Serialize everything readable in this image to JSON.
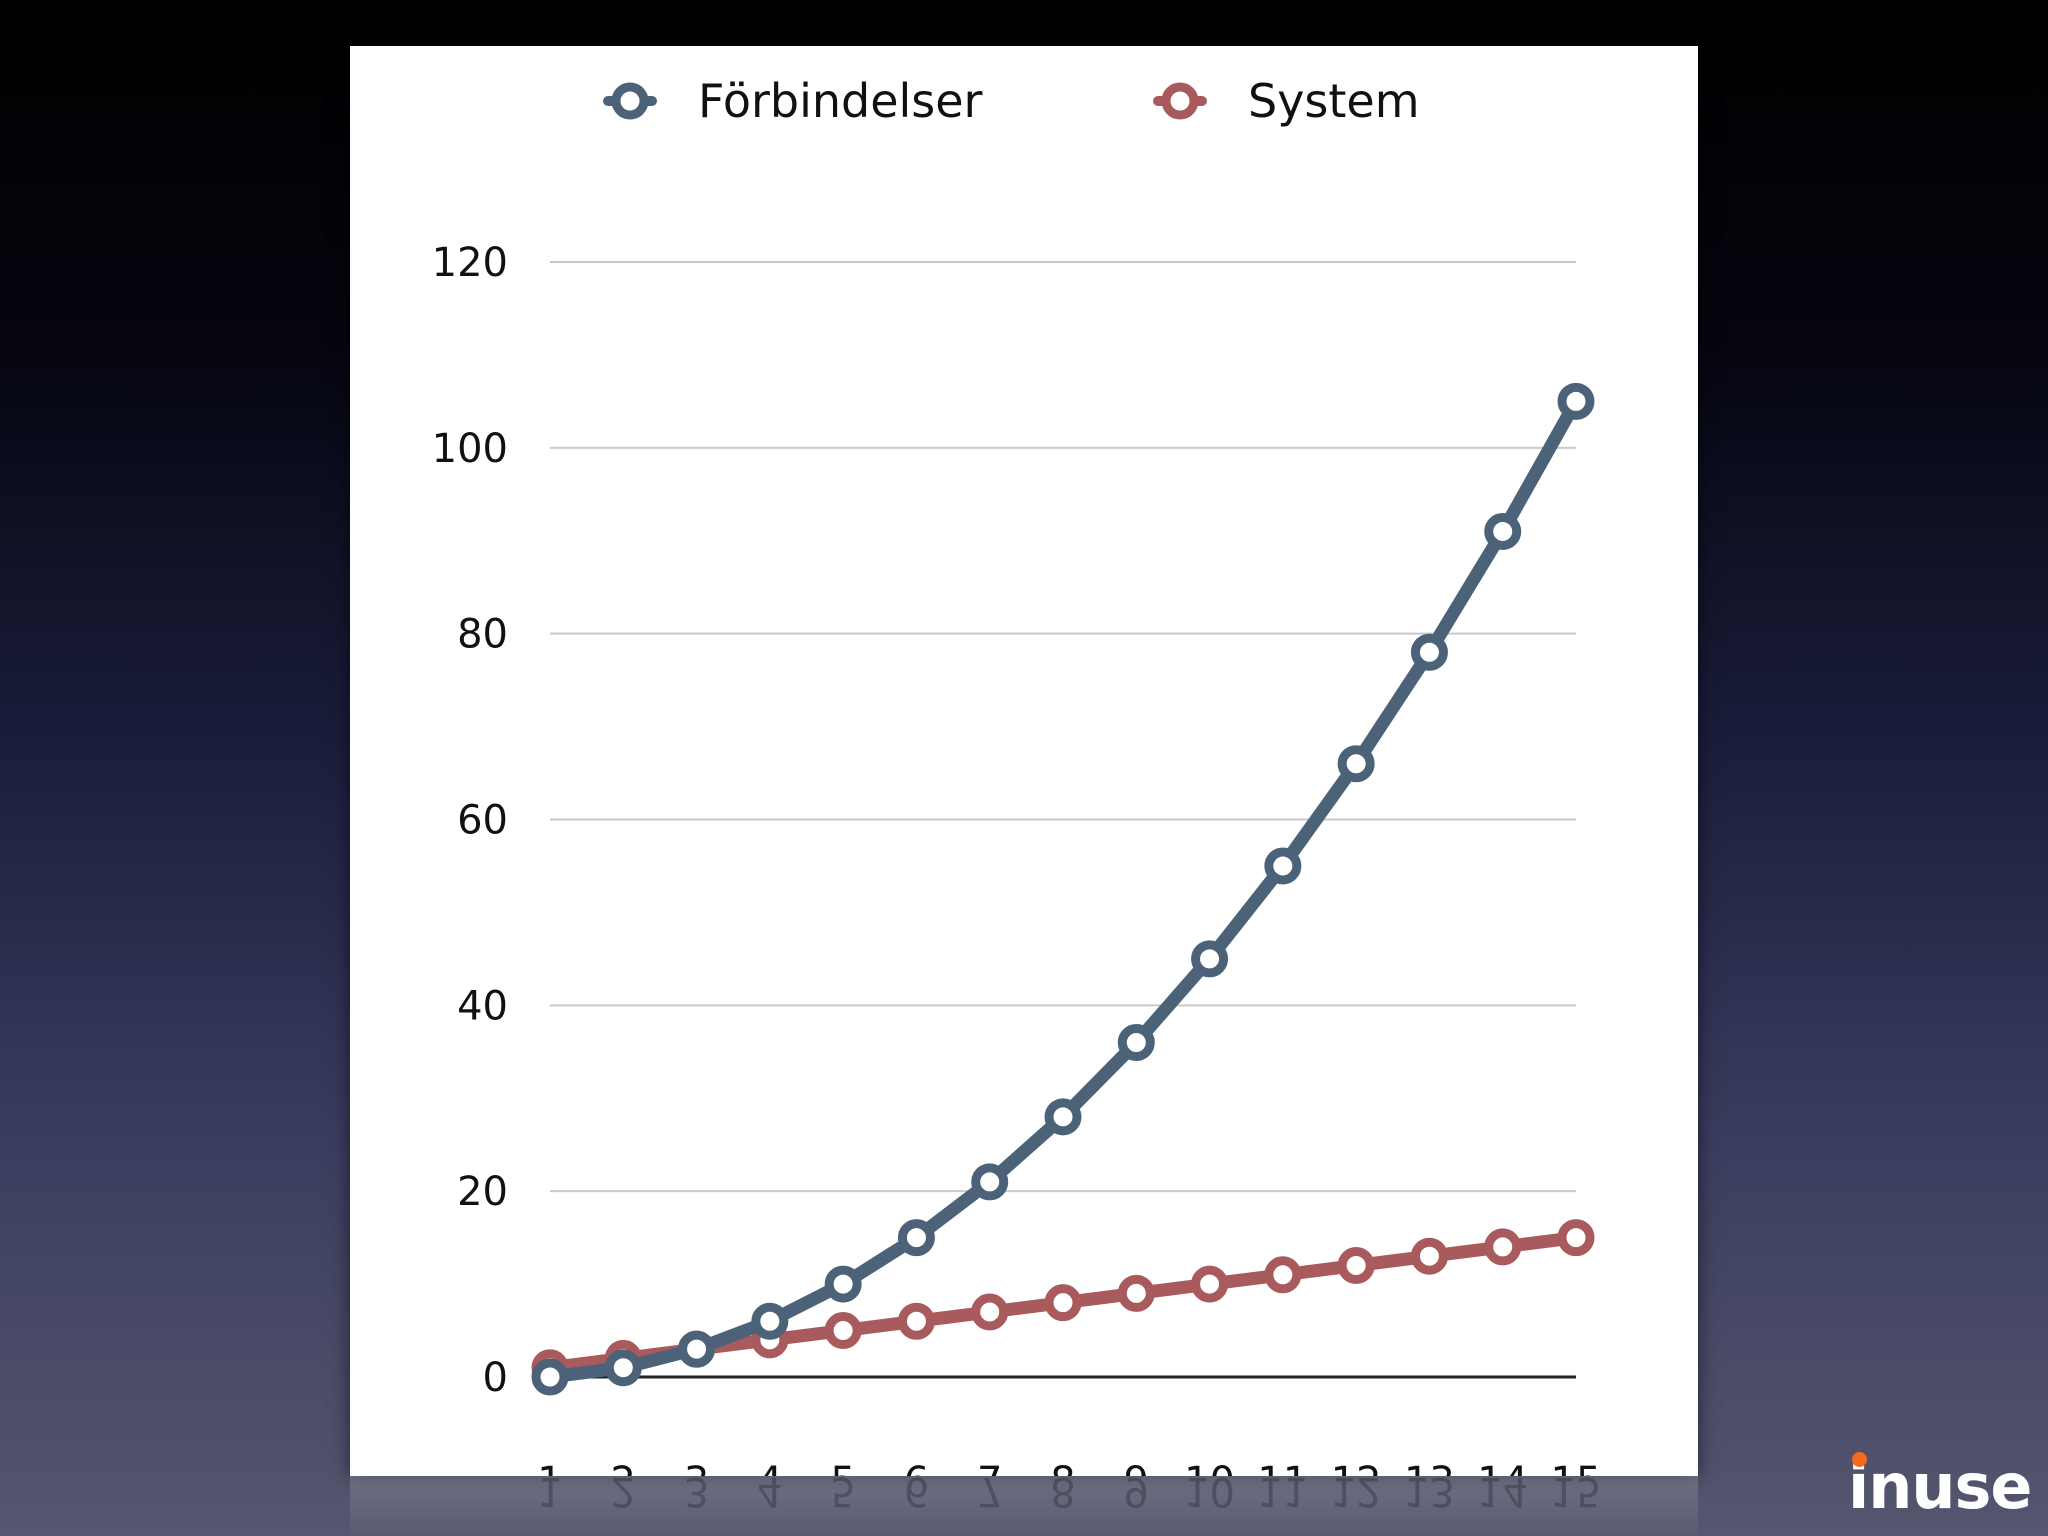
{
  "chart_data": {
    "type": "line",
    "x": [
      1,
      2,
      3,
      4,
      5,
      6,
      7,
      8,
      9,
      10,
      11,
      12,
      13,
      14,
      15
    ],
    "x_tick_labels": [
      "1",
      "2",
      "3",
      "4",
      "5",
      "6",
      "7",
      "8",
      "9",
      "10",
      "11",
      "12",
      "13",
      "14",
      "15"
    ],
    "y_ticks": [
      0,
      20,
      40,
      60,
      80,
      100,
      120
    ],
    "y_tick_labels": [
      "0",
      "20",
      "40",
      "60",
      "80",
      "100",
      "120"
    ],
    "ylim": [
      0,
      120
    ],
    "grid": true,
    "legend_position": "top",
    "series": [
      {
        "name": "Förbindelser",
        "color": "#4b6278",
        "values": [
          0,
          1,
          3,
          6,
          10,
          15,
          21,
          28,
          36,
          45,
          55,
          66,
          78,
          91,
          105
        ]
      },
      {
        "name": "System",
        "color": "#a85a5c",
        "values": [
          1,
          2,
          3,
          4,
          5,
          6,
          7,
          8,
          9,
          10,
          11,
          12,
          13,
          14,
          15
        ]
      }
    ]
  },
  "brand": {
    "logo_text": "inuse",
    "dot_color": "#f26a21"
  }
}
